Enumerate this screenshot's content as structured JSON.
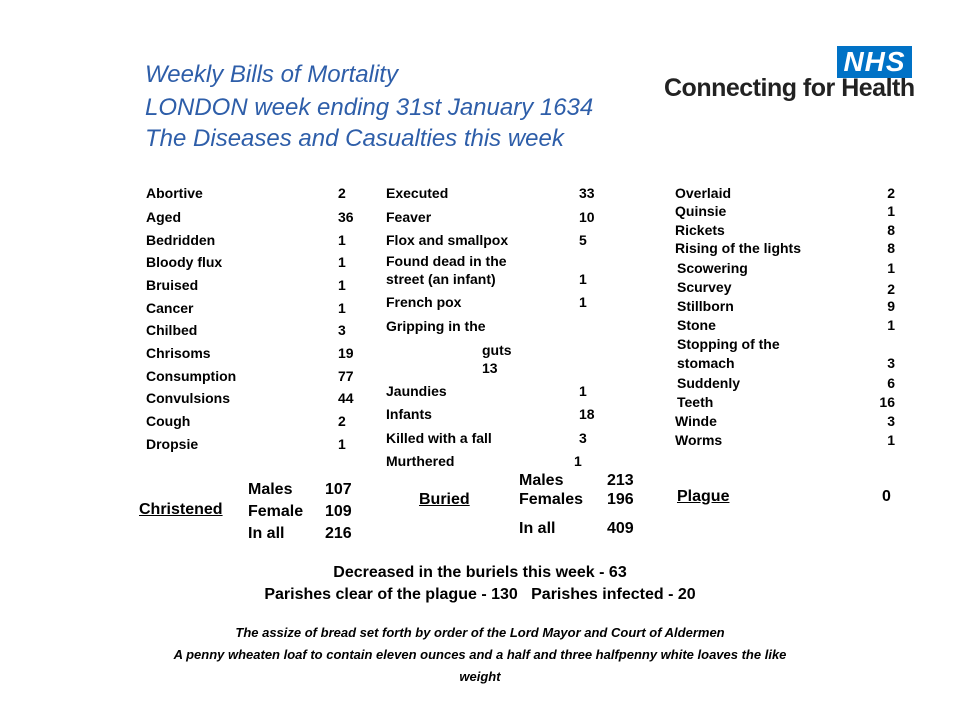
{
  "title": {
    "line1": "Weekly Bills of Mortality",
    "line2": "LONDON week ending 31st January 1634",
    "line3": "The Diseases and Casualties this week"
  },
  "logo": {
    "mark": "NHS",
    "text": "Connecting for Health",
    "colors": {
      "box": "#0072c6",
      "text": "#222222"
    }
  },
  "col1": [
    {
      "name": "Abortive",
      "count": "2"
    },
    {
      "name": "Aged",
      "count": "36"
    },
    {
      "name": "Bedridden",
      "count": "1"
    },
    {
      "name": "Bloody flux",
      "count": "1"
    },
    {
      "name": "Bruised",
      "count": "1"
    },
    {
      "name": "Cancer",
      "count": "1"
    },
    {
      "name": "Chilbed",
      "count": "3"
    },
    {
      "name": "Chrisoms",
      "count": "19"
    },
    {
      "name": "Consumption",
      "count": "77"
    },
    {
      "name": "Convulsions",
      "count": "44"
    },
    {
      "name": "Cough",
      "count": "2"
    },
    {
      "name": "Dropsie",
      "count": "1"
    }
  ],
  "col2": {
    "executed": {
      "name": "Executed",
      "count": "33"
    },
    "feaver": {
      "name": "Feaver",
      "count": "10"
    },
    "flox": {
      "name": "Flox and smallpox",
      "count": "5"
    },
    "found_dead": {
      "line1": "Found dead in the",
      "line2": "street (an infant)",
      "count": "1"
    },
    "french_pox": {
      "name": "French pox",
      "count": "1"
    },
    "gripping": {
      "line1": "Gripping in the",
      "line2": "guts",
      "count": "13"
    },
    "jaundies": {
      "name": "Jaundies",
      "count": "1"
    },
    "infants": {
      "name": "Infants",
      "count": "18"
    },
    "killed": {
      "name": "Killed with a fall",
      "count": "3"
    },
    "murthered": {
      "name": "Murthered",
      "count": "1"
    }
  },
  "col3": [
    {
      "name": "Overlaid",
      "count": "2"
    },
    {
      "name": "Quinsie",
      "count": "1"
    },
    {
      "name": "Rickets",
      "count": "8"
    },
    {
      "name": "Rising of the lights",
      "count": "8"
    },
    {
      "name": "Scowering",
      "count": "1"
    },
    {
      "name": "Scurvey",
      "count": "2"
    },
    {
      "name": "Stillborn",
      "count": "9"
    },
    {
      "name": "Stone",
      "count": "1"
    },
    {
      "name": "Stopping of the",
      "count": ""
    },
    {
      "name": "stomach",
      "count": "3"
    },
    {
      "name": "Suddenly",
      "count": "6"
    },
    {
      "name": "Teeth",
      "count": "16"
    },
    {
      "name": "Winde",
      "count": "3"
    },
    {
      "name": "Worms",
      "count": "1"
    }
  ],
  "christened": {
    "label": "Christened",
    "males_label": "Males",
    "males": "107",
    "female_label": "Female",
    "female": "109",
    "inall_label": "In all",
    "inall": "216"
  },
  "buried": {
    "label": "Buried",
    "males_label": "Males",
    "males": "213",
    "females_label": "Females",
    "females": "196",
    "inall_label": "In all",
    "inall": "409"
  },
  "plague": {
    "label": "Plague",
    "count": "0"
  },
  "summary": {
    "line1": "Decreased in the buriels this week - 63",
    "line2": "Parishes clear of the plague - 130   Parishes infected - 20"
  },
  "assize": {
    "line1": "The assize of bread set forth by order of the Lord Mayor and Court of Aldermen",
    "line2": "A penny wheaten loaf to contain eleven ounces and a half and three halfpenny white loaves the like",
    "line3": "weight"
  }
}
